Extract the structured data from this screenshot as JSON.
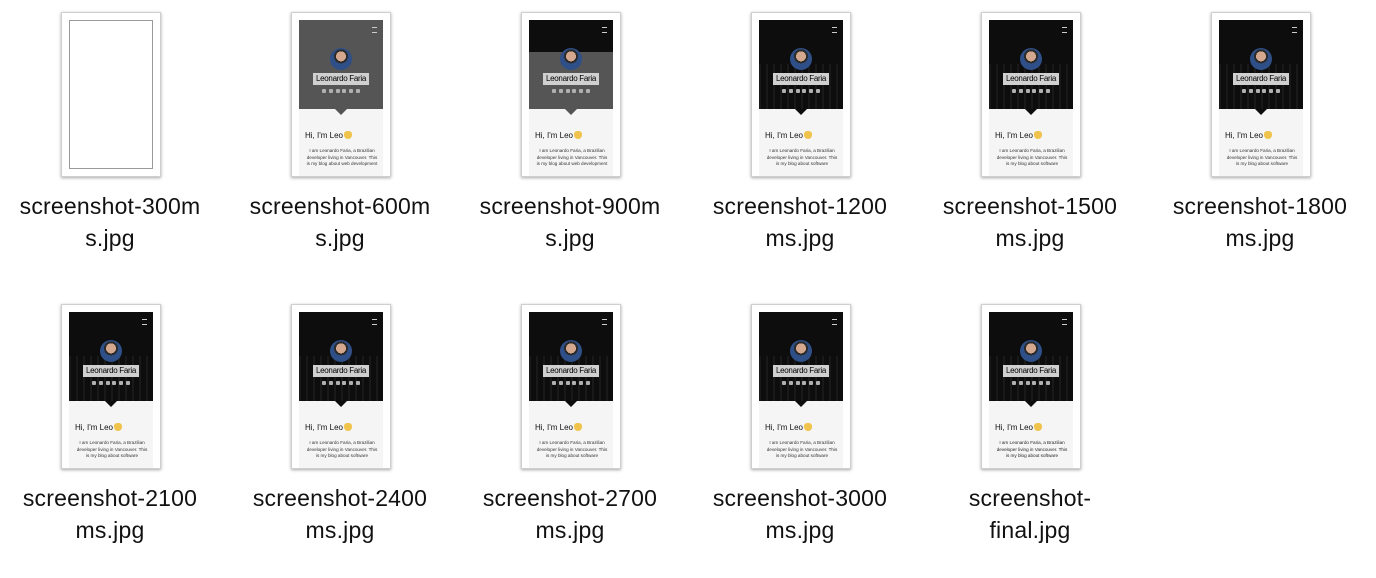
{
  "files": [
    {
      "label_line1": "screenshot-300m",
      "label_line2": "s.jpg",
      "state": "blank"
    },
    {
      "label_line1": "screenshot-600m",
      "label_line2": "s.jpg",
      "state": "gray"
    },
    {
      "label_line1": "screenshot-900m",
      "label_line2": "s.jpg",
      "state": "gray-top"
    },
    {
      "label_line1": "screenshot-1200",
      "label_line2": "ms.jpg",
      "state": "loaded"
    },
    {
      "label_line1": "screenshot-1500",
      "label_line2": "ms.jpg",
      "state": "loaded"
    },
    {
      "label_line1": "screenshot-1800",
      "label_line2": "ms.jpg",
      "state": "loaded"
    },
    {
      "label_line1": "screenshot-2100",
      "label_line2": "ms.jpg",
      "state": "loaded"
    },
    {
      "label_line1": "screenshot-2400",
      "label_line2": "ms.jpg",
      "state": "loaded"
    },
    {
      "label_line1": "screenshot-2700",
      "label_line2": "ms.jpg",
      "state": "loaded"
    },
    {
      "label_line1": "screenshot-3000",
      "label_line2": "ms.jpg",
      "state": "loaded"
    },
    {
      "label_line1": "screenshot-",
      "label_line2": "final.jpg",
      "state": "final"
    }
  ],
  "thumbnail": {
    "name": "Leonardo Faria",
    "greeting": "Hi, I'm Leo",
    "intro_text_early": "I am Leonardo Faria, a Brazilian developer living in Vancouver. This is my blog about web development",
    "intro_text": "I am Leonardo Faria, a Brazilian developer living in Vancouver. This is my blog about software",
    "social_icons": [
      "twitter-icon",
      "github-icon",
      "instagram-icon",
      "linkedin-icon",
      "email-icon",
      "rss-icon"
    ]
  }
}
